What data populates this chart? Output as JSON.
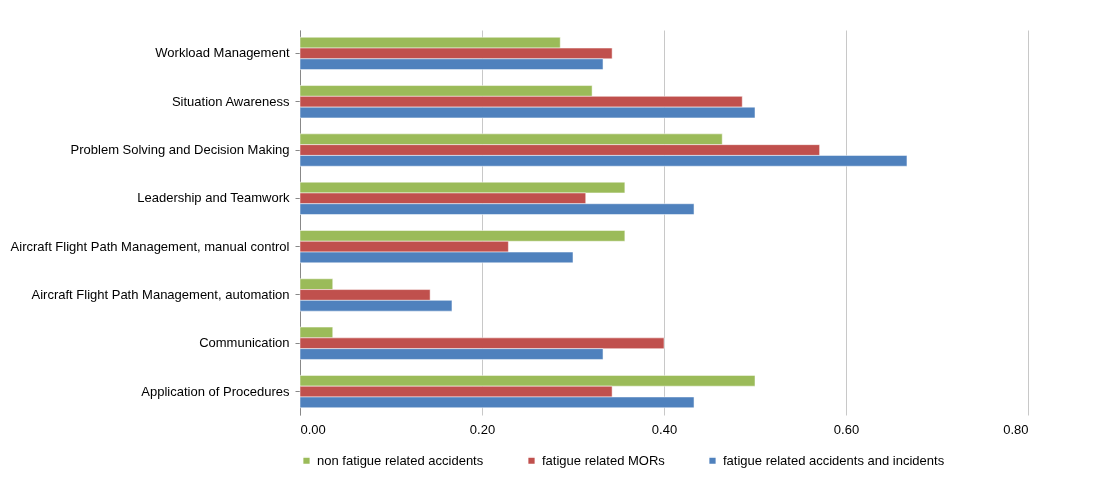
{
  "chart_data": {
    "type": "bar",
    "orientation": "horizontal",
    "categories": [
      "Workload Management",
      "Situation Awareness",
      "Problem Solving and Decision Making",
      "Leadership and Teamwork",
      "Aircraft Flight Path Management, manual control",
      "Aircraft Flight Path Management, automation",
      "Communication",
      "Application of Procedures"
    ],
    "series": [
      {
        "name": "non fatigue related accidents",
        "color": "#9bbb59",
        "values": [
          0.286,
          0.321,
          0.464,
          0.357,
          0.357,
          0.036,
          0.036,
          0.5
        ]
      },
      {
        "name": "fatigue related MORs",
        "color": "#c0504d",
        "values": [
          0.343,
          0.486,
          0.571,
          0.314,
          0.229,
          0.143,
          0.4,
          0.343
        ]
      },
      {
        "name": "fatigue related accidents and incidents",
        "color": "#4f81bd",
        "values": [
          0.333,
          0.5,
          0.667,
          0.433,
          0.3,
          0.167,
          0.333,
          0.433
        ]
      }
    ],
    "xlim": [
      0,
      0.8
    ],
    "xticks": [
      {
        "value": 0,
        "label": "0.00"
      },
      {
        "value": 0.2,
        "label": "0.20"
      },
      {
        "value": 0.4,
        "label": "0.40"
      },
      {
        "value": 0.6,
        "label": "0.60"
      },
      {
        "value": 0.8,
        "label": "0.80"
      }
    ],
    "grid": "x",
    "legend": "bottom"
  }
}
